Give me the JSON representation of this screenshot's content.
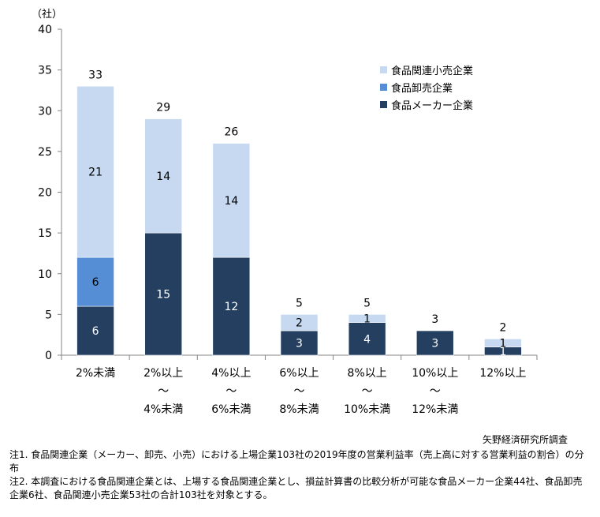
{
  "chart_data": {
    "type": "bar",
    "stacked": true,
    "y_unit_label": "（社）",
    "ylim": [
      0,
      40
    ],
    "yticks": [
      0,
      5,
      10,
      15,
      20,
      25,
      30,
      35,
      40
    ],
    "categories": [
      {
        "lines": [
          "2%未満"
        ]
      },
      {
        "lines": [
          "2%以上",
          "～",
          "4%未満"
        ]
      },
      {
        "lines": [
          "4%以上",
          "～",
          "6%未満"
        ]
      },
      {
        "lines": [
          "6%以上",
          "～",
          "8%未満"
        ]
      },
      {
        "lines": [
          "8%以上",
          "～",
          "10%未満"
        ]
      },
      {
        "lines": [
          "10%以上",
          "～",
          "12%未満"
        ]
      },
      {
        "lines": [
          "12%以上"
        ]
      }
    ],
    "series": [
      {
        "name": "食品メーカー企業",
        "color": "#243f60",
        "label_color": "#ffffff",
        "values": [
          6,
          15,
          12,
          3,
          4,
          3,
          1
        ]
      },
      {
        "name": "食品卸売企業",
        "color": "#558ed5",
        "label_color": "#000000",
        "values": [
          6,
          0,
          0,
          0,
          0,
          0,
          0
        ]
      },
      {
        "name": "食品関連小売企業",
        "color": "#c6d9f1",
        "label_color": "#000000",
        "values": [
          21,
          14,
          14,
          2,
          1,
          0,
          1
        ]
      }
    ],
    "totals": [
      33,
      29,
      26,
      5,
      5,
      3,
      2
    ],
    "legend_order": [
      "食品関連小売企業",
      "食品卸売企業",
      "食品メーカー企業"
    ],
    "legend_position": "top-right"
  },
  "credit": "矢野経済研究所調査",
  "notes": [
    "注1. 食品関連企業（メーカー、卸売、小売）における上場企業103社の2019年度の営業利益率（売上高に対する営業利益の割合）の分布",
    "注2. 本調査における食品関連企業とは、上場する食品関連企業とし、損益計算書の比較分析が可能な食品メーカー企業44社、食品卸売企業6社、食品関連小売企業53社の合計103社を対象とする。"
  ]
}
